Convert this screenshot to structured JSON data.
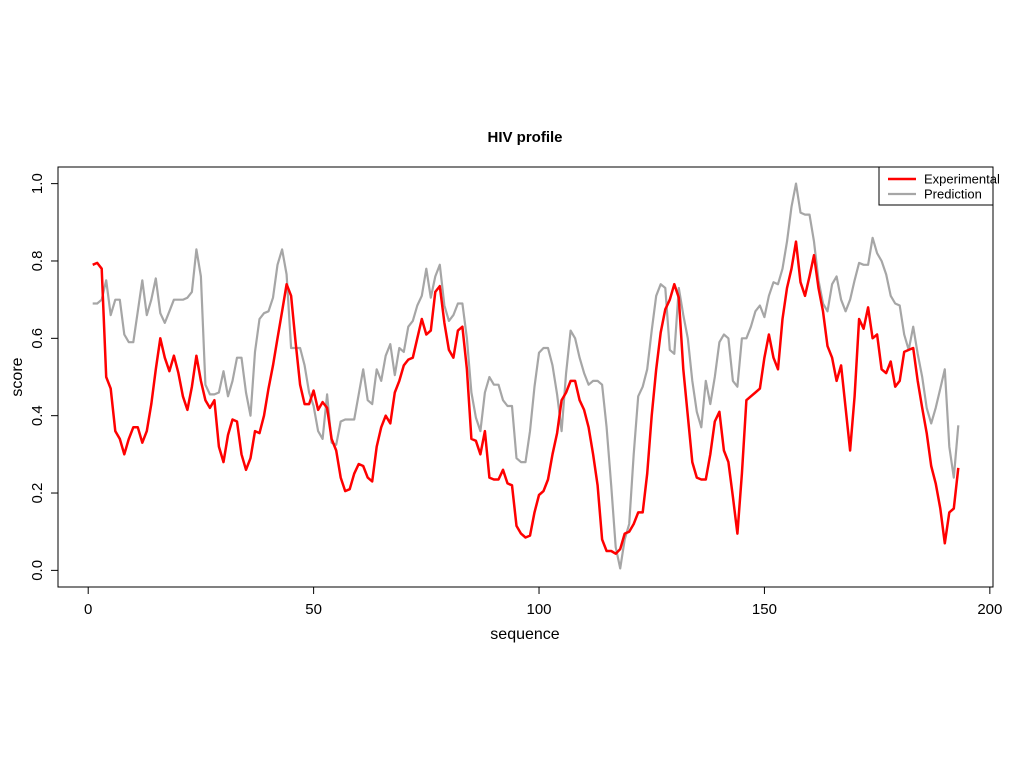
{
  "page": {
    "background": "#ffffff"
  },
  "chart_data": {
    "type": "line",
    "title": "HIV profile",
    "xlabel": "sequence",
    "ylabel": "score",
    "grid": false,
    "legend_position": "top-right",
    "x_ticks": [
      0,
      50,
      100,
      150,
      200
    ],
    "x_tick_labels": [
      "0",
      "50",
      "100",
      "150",
      "200"
    ],
    "y_ticks": [
      0.0,
      0.2,
      0.4,
      0.6,
      0.8,
      1.0
    ],
    "y_tick_labels": [
      "0.0",
      "0.2",
      "0.4",
      "0.6",
      "0.8",
      "1.0"
    ],
    "xlim": [
      -6.7,
      200.7
    ],
    "ylim": [
      -0.043,
      1.043
    ],
    "x_start": 1,
    "x_step": 1,
    "series": [
      {
        "name": "Experimental",
        "color": "#ff0000",
        "line_width": 2.5,
        "values": [
          0.79,
          0.795,
          0.78,
          0.5,
          0.47,
          0.36,
          0.34,
          0.3,
          0.34,
          0.37,
          0.37,
          0.33,
          0.36,
          0.43,
          0.52,
          0.6,
          0.55,
          0.515,
          0.555,
          0.51,
          0.45,
          0.415,
          0.475,
          0.555,
          0.49,
          0.44,
          0.42,
          0.44,
          0.32,
          0.28,
          0.35,
          0.39,
          0.385,
          0.3,
          0.26,
          0.29,
          0.36,
          0.355,
          0.4,
          0.47,
          0.53,
          0.6,
          0.67,
          0.74,
          0.71,
          0.59,
          0.48,
          0.43,
          0.43,
          0.465,
          0.415,
          0.435,
          0.42,
          0.34,
          0.31,
          0.24,
          0.205,
          0.21,
          0.25,
          0.275,
          0.27,
          0.24,
          0.23,
          0.32,
          0.37,
          0.4,
          0.38,
          0.46,
          0.49,
          0.53,
          0.545,
          0.55,
          0.6,
          0.65,
          0.61,
          0.62,
          0.72,
          0.735,
          0.64,
          0.57,
          0.55,
          0.62,
          0.63,
          0.52,
          0.34,
          0.335,
          0.3,
          0.36,
          0.24,
          0.235,
          0.235,
          0.26,
          0.225,
          0.22,
          0.115,
          0.095,
          0.085,
          0.09,
          0.15,
          0.195,
          0.205,
          0.235,
          0.3,
          0.355,
          0.44,
          0.46,
          0.49,
          0.49,
          0.44,
          0.415,
          0.37,
          0.3,
          0.22,
          0.08,
          0.05,
          0.05,
          0.043,
          0.055,
          0.095,
          0.1,
          0.12,
          0.15,
          0.15,
          0.25,
          0.4,
          0.52,
          0.615,
          0.675,
          0.7,
          0.74,
          0.705,
          0.52,
          0.4,
          0.28,
          0.24,
          0.235,
          0.235,
          0.3,
          0.385,
          0.41,
          0.31,
          0.28,
          0.19,
          0.095,
          0.25,
          0.44,
          0.45,
          0.46,
          0.47,
          0.55,
          0.61,
          0.55,
          0.52,
          0.65,
          0.73,
          0.78,
          0.85,
          0.745,
          0.71,
          0.76,
          0.815,
          0.73,
          0.67,
          0.58,
          0.55,
          0.49,
          0.53,
          0.42,
          0.31,
          0.45,
          0.65,
          0.625,
          0.68,
          0.6,
          0.61,
          0.52,
          0.51,
          0.54,
          0.475,
          0.49,
          0.565,
          0.57,
          0.575,
          0.49,
          0.42,
          0.355,
          0.27,
          0.225,
          0.16,
          0.07,
          0.15,
          0.16,
          0.265
        ]
      },
      {
        "name": "Prediction",
        "color": "#a6a6a6",
        "line_width": 2.2,
        "values": [
          0.69,
          0.69,
          0.7,
          0.75,
          0.66,
          0.7,
          0.7,
          0.61,
          0.59,
          0.59,
          0.67,
          0.75,
          0.66,
          0.7,
          0.755,
          0.665,
          0.64,
          0.67,
          0.7,
          0.7,
          0.7,
          0.705,
          0.72,
          0.83,
          0.76,
          0.48,
          0.455,
          0.455,
          0.46,
          0.515,
          0.45,
          0.49,
          0.55,
          0.55,
          0.46,
          0.4,
          0.565,
          0.65,
          0.665,
          0.67,
          0.705,
          0.79,
          0.83,
          0.765,
          0.575,
          0.575,
          0.575,
          0.53,
          0.46,
          0.425,
          0.36,
          0.34,
          0.455,
          0.33,
          0.325,
          0.385,
          0.39,
          0.39,
          0.39,
          0.455,
          0.52,
          0.44,
          0.43,
          0.52,
          0.49,
          0.555,
          0.585,
          0.505,
          0.575,
          0.565,
          0.63,
          0.645,
          0.685,
          0.71,
          0.78,
          0.705,
          0.76,
          0.79,
          0.685,
          0.645,
          0.66,
          0.69,
          0.69,
          0.6,
          0.46,
          0.395,
          0.36,
          0.46,
          0.5,
          0.48,
          0.48,
          0.44,
          0.425,
          0.425,
          0.29,
          0.28,
          0.28,
          0.36,
          0.475,
          0.5625,
          0.575,
          0.575,
          0.53,
          0.455,
          0.36,
          0.51,
          0.62,
          0.6,
          0.55,
          0.51,
          0.48,
          0.49,
          0.49,
          0.48,
          0.37,
          0.22,
          0.06,
          0.005,
          0.08,
          0.12,
          0.3,
          0.45,
          0.475,
          0.52,
          0.62,
          0.71,
          0.74,
          0.73,
          0.57,
          0.56,
          0.73,
          0.66,
          0.6,
          0.49,
          0.41,
          0.37,
          0.49,
          0.43,
          0.5,
          0.59,
          0.61,
          0.6,
          0.49,
          0.475,
          0.6,
          0.6,
          0.63,
          0.67,
          0.685,
          0.655,
          0.71,
          0.745,
          0.74,
          0.78,
          0.85,
          0.94,
          1.0,
          0.925,
          0.92,
          0.92,
          0.85,
          0.75,
          0.69,
          0.67,
          0.74,
          0.76,
          0.7,
          0.67,
          0.7,
          0.75,
          0.795,
          0.79,
          0.79,
          0.86,
          0.82,
          0.8,
          0.765,
          0.71,
          0.69,
          0.685,
          0.61,
          0.57,
          0.63,
          0.56,
          0.5,
          0.42,
          0.38,
          0.42,
          0.47,
          0.52,
          0.32,
          0.24,
          0.375
        ]
      }
    ]
  }
}
